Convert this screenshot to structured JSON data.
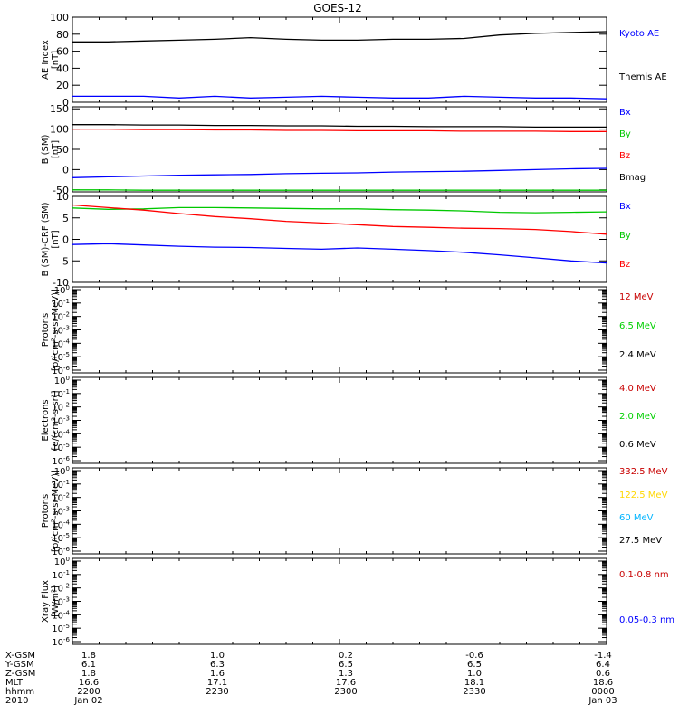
{
  "title": "GOES-12",
  "colors": {
    "black": "#000000",
    "blue": "#0000ff",
    "red": "#ff0000",
    "green": "#00c800",
    "dark_red": "#c80000",
    "green_text": "#00d000",
    "yellow": "#ffd700",
    "cyan": "#00b4ff"
  },
  "time_axis": {
    "start": "2200",
    "end": "0000",
    "rows": [
      {
        "label": "X-GSM",
        "values": [
          "1.8",
          "1.0",
          "0.2",
          "-0.6",
          "-1.4"
        ]
      },
      {
        "label": "Y-GSM",
        "values": [
          "6.1",
          "6.3",
          "6.5",
          "6.5",
          "6.4"
        ]
      },
      {
        "label": "Z-GSM",
        "values": [
          "1.8",
          "1.6",
          "1.3",
          "1.0",
          "0.6"
        ]
      },
      {
        "label": "MLT",
        "values": [
          "16.6",
          "17.1",
          "17.6",
          "18.1",
          "18.6"
        ]
      },
      {
        "label": "hhmm",
        "values": [
          "2200",
          "2230",
          "2300",
          "2330",
          "0000"
        ]
      },
      {
        "label": "2010",
        "values": [
          "Jan 02",
          "",
          "",
          "",
          "Jan 03"
        ]
      }
    ]
  },
  "chart_data": [
    {
      "type": "line",
      "title": "GOES-12",
      "ylabel": [
        "AE Index",
        "[nT]"
      ],
      "ylim": [
        0,
        100
      ],
      "yticks": [
        0,
        20,
        40,
        60,
        80,
        100
      ],
      "yscale": "linear",
      "legend_placement": "right",
      "series": [
        {
          "name": "Kyoto AE",
          "color": "blue",
          "values": [
            7,
            7,
            7,
            5,
            7,
            5,
            6,
            7,
            6,
            5,
            5,
            7,
            6,
            5,
            5,
            4
          ]
        },
        {
          "name": "Themis AE",
          "color": "black",
          "values": []
        },
        {
          "values": [
            71,
            71,
            72,
            73,
            74,
            76,
            74,
            73,
            73,
            74,
            74,
            75,
            79,
            81,
            82,
            83
          ],
          "color": "black"
        }
      ]
    },
    {
      "type": "line",
      "ylabel": [
        "B (SM)",
        "[nT]"
      ],
      "ylim": [
        -55,
        155
      ],
      "yticks": [
        -50,
        0,
        50,
        100,
        150
      ],
      "yscale": "linear",
      "series": [
        {
          "name": "Bx",
          "color": "blue",
          "values": [
            -20,
            -18,
            -16,
            -14,
            -13,
            -12,
            -10,
            -9,
            -8,
            -6,
            -5,
            -4,
            -2,
            0,
            2,
            3
          ]
        },
        {
          "name": "By",
          "color": "green",
          "values": [
            -50,
            -50,
            -51,
            -51,
            -51,
            -51,
            -51,
            -51,
            -51,
            -51,
            -51,
            -51,
            -51,
            -51,
            -51,
            -51
          ]
        },
        {
          "name": "Bz",
          "color": "red",
          "values": [
            100,
            100,
            99,
            99,
            98,
            98,
            97,
            97,
            96,
            96,
            96,
            95,
            95,
            95,
            94,
            94
          ]
        },
        {
          "name": "Bmag",
          "color": "black",
          "values": [
            111,
            111,
            110,
            110,
            109,
            109,
            108,
            108,
            107,
            107,
            106,
            106,
            106,
            105,
            105,
            105
          ]
        }
      ]
    },
    {
      "type": "line",
      "ylabel": [
        "B (SM)-CRF (SM)",
        "[nT]"
      ],
      "ylim": [
        -10,
        10
      ],
      "yticks": [
        -10,
        -5,
        0,
        5,
        10
      ],
      "yscale": "linear",
      "series": [
        {
          "name": "Bx",
          "color": "blue",
          "values": [
            -1.2,
            -1.0,
            -1.3,
            -1.6,
            -1.8,
            -1.9,
            -2.1,
            -2.3,
            -2.0,
            -2.3,
            -2.6,
            -3.0,
            -3.6,
            -4.3,
            -5.0,
            -5.5
          ]
        },
        {
          "name": "By",
          "color": "green",
          "values": [
            7.3,
            7.0,
            7.1,
            7.4,
            7.4,
            7.3,
            7.2,
            7.1,
            7.1,
            6.9,
            6.8,
            6.6,
            6.3,
            6.2,
            6.3,
            6.4
          ]
        },
        {
          "name": "Bz",
          "color": "red",
          "values": [
            8.0,
            7.4,
            6.8,
            6.0,
            5.3,
            4.8,
            4.2,
            3.8,
            3.4,
            3.0,
            2.8,
            2.6,
            2.5,
            2.3,
            1.8,
            1.2
          ]
        }
      ]
    },
    {
      "type": "line",
      "ylabel": [
        "Protons",
        "[p/(cm²-s-sr-MeV)]"
      ],
      "ylim": [
        1e-06,
        1
      ],
      "yscale": "log",
      "ytick_exponents": [
        -6,
        -5,
        -4,
        -3,
        -2,
        -1,
        0
      ],
      "series": [
        {
          "name": "12 MeV",
          "color": "dark_red",
          "values": []
        },
        {
          "name": "6.5 MeV",
          "color": "green_text",
          "values": []
        },
        {
          "name": "2.4 MeV",
          "color": "black",
          "values": []
        }
      ]
    },
    {
      "type": "line",
      "ylabel": [
        "Electrons",
        "[e/(cm²-s-sr)]"
      ],
      "ylim": [
        1e-06,
        1
      ],
      "yscale": "log",
      "ytick_exponents": [
        -6,
        -5,
        -4,
        -3,
        -2,
        -1,
        0
      ],
      "series": [
        {
          "name": "4.0 MeV",
          "color": "dark_red",
          "values": []
        },
        {
          "name": "2.0 MeV",
          "color": "green_text",
          "values": []
        },
        {
          "name": "0.6 MeV",
          "color": "black",
          "values": []
        }
      ]
    },
    {
      "type": "line",
      "ylabel": [
        "Protons",
        "[p/(cm²-s-sr-MeV)]"
      ],
      "ylim": [
        1e-06,
        1
      ],
      "yscale": "log",
      "ytick_exponents": [
        -6,
        -5,
        -4,
        -3,
        -2,
        -1,
        0
      ],
      "series": [
        {
          "name": "332.5 MeV",
          "color": "dark_red",
          "values": []
        },
        {
          "name": "122.5 MeV",
          "color": "yellow",
          "values": []
        },
        {
          "name": "60 MeV",
          "color": "cyan",
          "values": []
        },
        {
          "name": "27.5 MeV",
          "color": "black",
          "values": []
        }
      ]
    },
    {
      "type": "line",
      "ylabel": [
        "Xray Flux",
        "[W/m²]"
      ],
      "ylim": [
        1e-06,
        1
      ],
      "yscale": "log",
      "ytick_exponents": [
        -6,
        -5,
        -4,
        -3,
        -2,
        -1,
        0
      ],
      "series": [
        {
          "name": "0.1-0.8 nm",
          "color": "dark_red",
          "values": []
        },
        {
          "name": "0.05-0.3 nm",
          "color": "blue",
          "values": []
        }
      ]
    }
  ]
}
